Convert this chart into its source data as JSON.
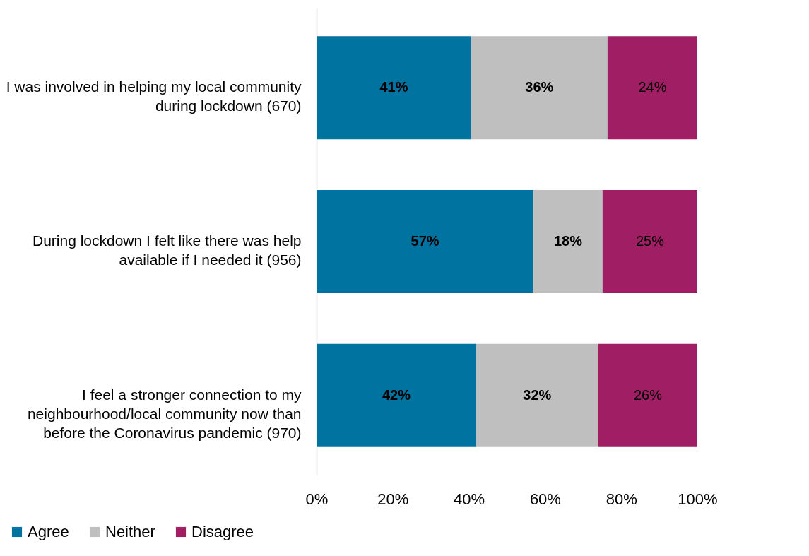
{
  "chart_data": {
    "type": "bar",
    "orientation": "horizontal",
    "stacked": true,
    "categories": [
      "I was involved in helping my local community during lockdown (670)",
      "During lockdown I felt like there was help available if I needed it (956)",
      "I feel a stronger connection to my neighbourhood/local community now than before the Coronavirus pandemic (970)"
    ],
    "series": [
      {
        "name": "Agree",
        "color": "#0073a0",
        "values": [
          40.6,
          57.0,
          41.9
        ],
        "value_labels": [
          "41%",
          "57%",
          "42%"
        ]
      },
      {
        "name": "Neither",
        "color": "#bfbfbf",
        "values": [
          35.8,
          18.1,
          32.1
        ],
        "value_labels": [
          "36%",
          "18%",
          "32%"
        ]
      },
      {
        "name": "Disagree",
        "color": "#a01e64",
        "values": [
          23.6,
          24.9,
          26.0
        ],
        "value_labels": [
          "24%",
          "25%",
          "26%"
        ]
      }
    ],
    "xlim": [
      0,
      100
    ],
    "xticks": [
      {
        "value": 0,
        "label": "0%"
      },
      {
        "value": 20,
        "label": "20%"
      },
      {
        "value": 40,
        "label": "40%"
      },
      {
        "value": 60,
        "label": "60%"
      },
      {
        "value": 80,
        "label": "80%"
      },
      {
        "value": 100,
        "label": "100%"
      }
    ],
    "grid": false,
    "legend": "bottom"
  }
}
